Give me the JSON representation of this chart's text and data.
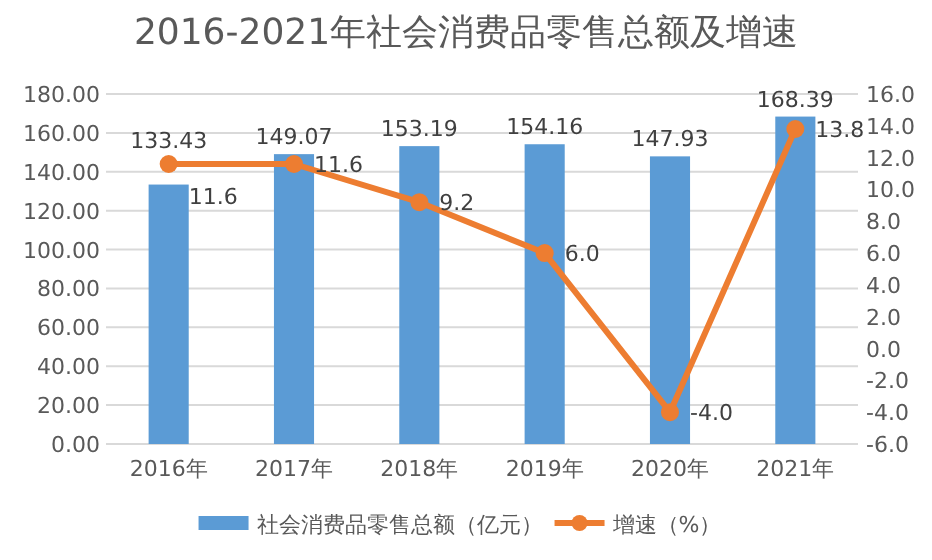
{
  "chart_data": {
    "type": "bar",
    "title": "2016-2021年社会消费品零售总额及增速",
    "categories": [
      "2016年",
      "2017年",
      "2018年",
      "2019年",
      "2020年",
      "2021年"
    ],
    "series": [
      {
        "name": "社会消费品零售总额（亿元）",
        "color": "#5b9bd5",
        "values": [
          133.43,
          149.07,
          153.19,
          154.16,
          147.93,
          168.39
        ],
        "value_labels": [
          "133.43",
          "149.07",
          "153.19",
          "154.16",
          "147.93",
          "168.39"
        ]
      },
      {
        "name": "增速（%）",
        "type": "line",
        "axis": "y2",
        "color": "#ed7d31",
        "values": [
          11.6,
          11.6,
          9.2,
          6.0,
          -4.0,
          13.8
        ],
        "value_labels": [
          "11.6",
          "11.6",
          "9.2",
          "6.0",
          "-4.0",
          "13.8"
        ]
      }
    ],
    "ylim": [
      0,
      180
    ],
    "yticks": [
      {
        "value": 0,
        "label": "0.00"
      },
      {
        "value": 20,
        "label": "20.00"
      },
      {
        "value": 40,
        "label": "40.00"
      },
      {
        "value": 60,
        "label": "60.00"
      },
      {
        "value": 80,
        "label": "80.00"
      },
      {
        "value": 100,
        "label": "100.00"
      },
      {
        "value": 120,
        "label": "120.00"
      },
      {
        "value": 140,
        "label": "140.00"
      },
      {
        "value": 160,
        "label": "160.00"
      },
      {
        "value": 180,
        "label": "180.00"
      }
    ],
    "y2lim": [
      -6,
      16
    ],
    "y2ticks": [
      {
        "value": -6,
        "label": "-6.0"
      },
      {
        "value": -4,
        "label": "-4.0"
      },
      {
        "value": -2,
        "label": "-2.0"
      },
      {
        "value": 0,
        "label": "0.0"
      },
      {
        "value": 2,
        "label": "2.0"
      },
      {
        "value": 4,
        "label": "4.0"
      },
      {
        "value": 6,
        "label": "6.0"
      },
      {
        "value": 8,
        "label": "8.0"
      },
      {
        "value": 10,
        "label": "10.0"
      },
      {
        "value": 12,
        "label": "12.0"
      },
      {
        "value": 14,
        "label": "14.0"
      },
      {
        "value": 16,
        "label": "16.0"
      }
    ],
    "grid": "y",
    "legend": "bottom",
    "marker": "circle",
    "line_style": "solid"
  }
}
